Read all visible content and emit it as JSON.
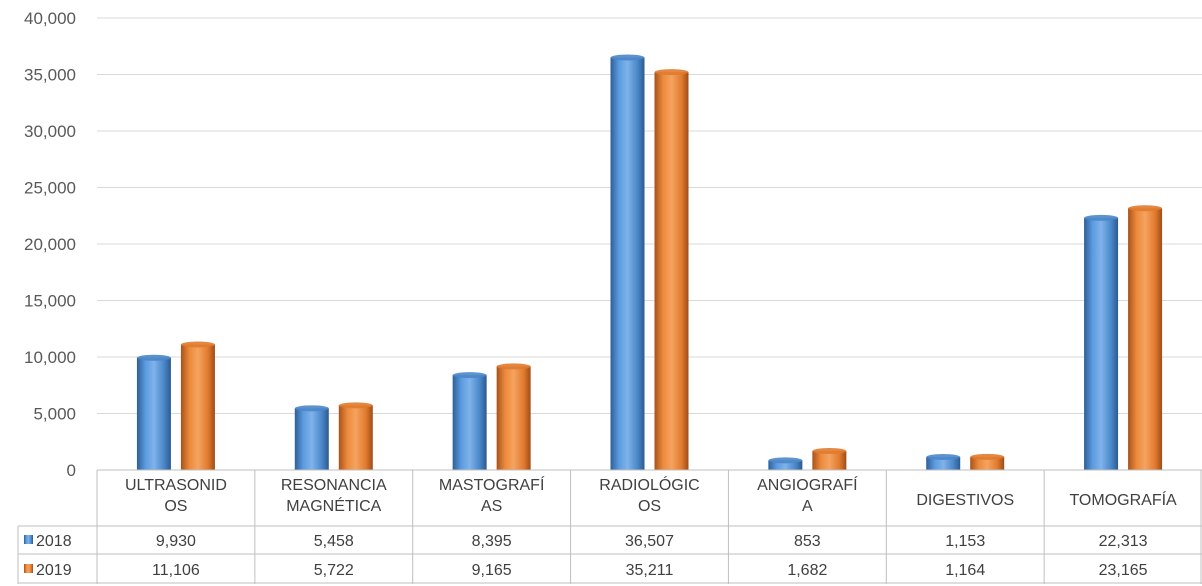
{
  "chart_data": {
    "type": "bar",
    "categories": [
      [
        "ULTRASONID",
        "OS"
      ],
      [
        "RESONANCIA",
        "MAGNÉTICA"
      ],
      [
        "MASTOGRAFÍ",
        "AS"
      ],
      [
        "RADIOLÓGIC",
        "OS"
      ],
      [
        "ANGIOGRAFÍ",
        "A"
      ],
      [
        "DIGESTIVOS"
      ],
      [
        "TOMOGRAFÍA"
      ]
    ],
    "series": [
      {
        "name": "2018",
        "color": "#4a86c8",
        "values": [
          9930,
          5458,
          8395,
          36507,
          853,
          1153,
          22313
        ],
        "labels": [
          "9,930",
          "5,458",
          "8,395",
          "36,507",
          "853",
          "1,153",
          "22,313"
        ]
      },
      {
        "name": "2019",
        "color": "#e07a2e",
        "values": [
          11106,
          5722,
          9165,
          35211,
          1682,
          1164,
          23165
        ],
        "labels": [
          "11,106",
          "5,722",
          "9,165",
          "35,211",
          "1,682",
          "1,164",
          "23,165"
        ]
      }
    ],
    "ylim": [
      0,
      40000
    ],
    "yticks": [
      "0",
      "5,000",
      "10,000",
      "15,000",
      "20,000",
      "25,000",
      "30,000",
      "35,000",
      "40,000"
    ],
    "grid": true,
    "data_table": true
  }
}
